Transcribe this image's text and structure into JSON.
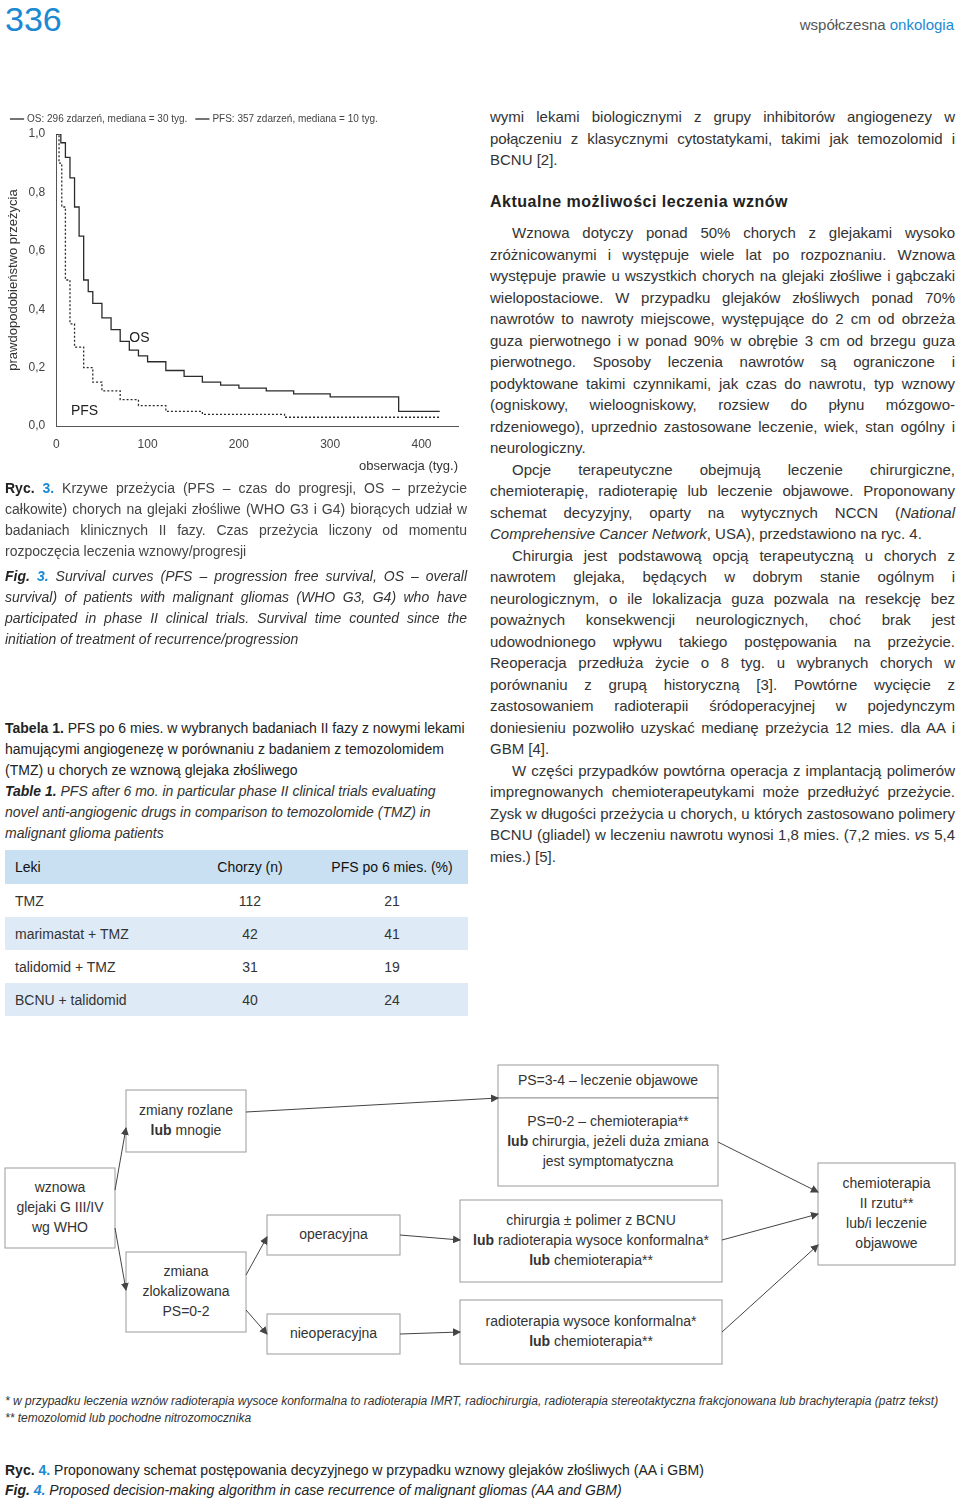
{
  "header": {
    "page_number": "336",
    "journal": [
      "współczesna",
      "onkologia"
    ]
  },
  "chart_data": {
    "type": "line",
    "x_label": "obserwacja (tyg.)",
    "y_label": "prawdopodobieństwo przeżycia",
    "xlim": [
      0,
      440
    ],
    "xticks": [
      0,
      100,
      200,
      300,
      400
    ],
    "ylim": [
      0,
      1
    ],
    "yticks": [
      {
        "value": 0,
        "label": "0,0"
      },
      {
        "value": 0.2,
        "label": "0,2"
      },
      {
        "value": 0.4,
        "label": "0,4"
      },
      {
        "value": 0.6,
        "label": "0,6"
      },
      {
        "value": 0.8,
        "label": "0,8"
      },
      {
        "value": 1,
        "label": "1,0"
      }
    ],
    "grid": false,
    "legend": "top-left",
    "series": [
      {
        "name": "OS: 296 zdarzeń, mediana = 30 tyg.",
        "color": "#2b2b2b",
        "line_style": "solid",
        "x": [
          0,
          5,
          10,
          15,
          20,
          25,
          30,
          35,
          40,
          50,
          60,
          70,
          80,
          90,
          100,
          120,
          140,
          160,
          180,
          200,
          230,
          260,
          300,
          375,
          420
        ],
        "values": [
          1.0,
          0.97,
          0.92,
          0.85,
          0.75,
          0.65,
          0.5,
          0.46,
          0.42,
          0.37,
          0.33,
          0.29,
          0.26,
          0.24,
          0.22,
          0.19,
          0.17,
          0.15,
          0.14,
          0.13,
          0.12,
          0.11,
          0.1,
          0.05,
          0.05
        ]
      },
      {
        "name": "PFS: 357 zdarzeń, mediana = 10 tyg.",
        "color": "#2b2b2b",
        "line_style": "dotted",
        "x": [
          0,
          3,
          6,
          10,
          15,
          20,
          30,
          40,
          50,
          70,
          90,
          120,
          160,
          250,
          420
        ],
        "values": [
          1.0,
          0.9,
          0.75,
          0.5,
          0.35,
          0.27,
          0.2,
          0.15,
          0.12,
          0.09,
          0.07,
          0.05,
          0.04,
          0.03,
          0.03
        ]
      }
    ],
    "annotations": [
      {
        "text": "OS",
        "x": 91,
        "y": 0.3
      },
      {
        "text": "PFS",
        "x": 31,
        "y": 0.05
      }
    ]
  },
  "figure3_caption": {
    "label": "Ryc.",
    "number": "3.",
    "text": "Krzywe przeżycia (PFS – czas do progresji, OS – przeżycie całkowite) chorych na glejaki złośliwe (WHO G3 i G4) biorących udział w badaniach klinicznych II fazy. Czas przeżycia liczony od momentu rozpoczęcia leczenia wznowy/progresji",
    "label_en": "Fig.",
    "number_en": "3.",
    "text_en": "Survival curves (PFS – progression free survival, OS – overall survival) of patients with malignant gliomas (WHO G3, G4) who have participated in phase II clinical trials. Survival time counted since the initiation of treatment of recurrence/progression"
  },
  "table1": {
    "label": "Tabela 1.",
    "caption": "PFS po 6 mies. w wybranych badaniach II fazy z nowymi lekami hamującymi angiogenezę w porównaniu z badaniem z temozolomidem (TMZ) u chorych ze wznową glejaka złośliwego",
    "label_en": "Table 1.",
    "caption_en": "PFS after 6 mo. in particular phase II clinical trials evaluating novel anti-angiogenic drugs in comparison to temozolomide (TMZ) in malignant glioma patients",
    "header": [
      "Leki",
      "Chorzy (n)",
      "PFS po 6 mies. (%)"
    ],
    "rows": [
      [
        "TMZ",
        112,
        21
      ],
      [
        "marimastat + TMZ",
        42,
        41
      ],
      [
        "talidomid + TMZ",
        31,
        19
      ],
      [
        "BCNU + talidomid",
        40,
        24
      ]
    ]
  },
  "body": [
    {
      "p": [
        "wymi lekami biologicznymi z grupy inhibitorów angiogenezy w połączeniu z klasycznymi cytostatykami, takimi jak temozolomid i BCNU [2]."
      ]
    },
    {
      "h": "Aktualne możliwości leczenia wznów"
    },
    {
      "p": [
        "Wznowa dotyczy ponad 50% chorych z glejakami wysoko zróżnicowanymi i występuje wiele lat po rozpoznaniu. Wznowa występuje prawie u wszystkich chorych na glejaki złośliwe i gąbczaki wielopostaciowe. W przypadku glejaków złośliwych ponad 70% nawrotów to nawroty miejscowe, występujące do 2 cm od obrzeża guza pierwotnego i w ponad 90% w obrębie 3 cm od brzegu guza pierwotnego. Sposoby leczenia nawrotów są ograniczone i podyktowane takimi czynnikami, jak czas do nawrotu, typ wznowy (ogniskowy, wieloogniskowy, rozsiew do płynu mózgowo-rdzeniowego), uprzednio zastosowane leczenie, wiek, stan ogólny i neurologiczny."
      ]
    },
    {
      "p": [
        "Opcje terapeutyczne obejmują leczenie chirurgiczne, chemioterapię, radioterapię lub leczenie objawowe. Proponowany schemat decyzyjny, oparty na wytycznych NCCN (",
        {
          "em": "National Comprehensive Cancer Network"
        },
        ", USA), przedstawiono na ryc. 4."
      ]
    },
    {
      "p": [
        "Chirurgia jest podstawową opcją terapeutyczną u chorych z nawrotem glejaka, będących w dobrym stanie ogólnym i neurologicznym, o ile lokalizacja guza pozwala na resekcję bez poważnych konsekwencji neurologicznych, choć brak jest udowodnionego wpływu takiego postępowania na przeżycie. Reoperacja przedłuża życie o 8 tyg. u wybranych chorych w porównaniu z grupą historyczną [3]. Powtórne wycięcie z zastosowaniem radioterapii śródoperacyjnej w pojedynczym doniesieniu pozwoliło uzyskać medianę przeżycia 12 mies. dla AA i GBM [4]."
      ]
    },
    {
      "p": [
        "W części przypadków powtórna operacja z implantacją polimerów impregnowanych chemioterapeutykami może przedłużyć przeżycie. Zysk w długości przeżycia u chorych, u których zastosowano polimery BCNU (gliadel) w leczeniu nawrotu wynosi 1,8 mies. (7,2 mies. ",
        {
          "em": "vs"
        },
        " 5,4 mies.) [5]."
      ]
    }
  ],
  "figure4": {
    "nodes": [
      {
        "lines": [
          "wznowa",
          "glejaki G III/IV",
          "wg WHO"
        ]
      },
      {
        "lines": [
          "zmiany rozlane",
          "lub mnogie"
        ]
      },
      {
        "lines": [
          "zmiana",
          "zlokalizowana",
          "PS=0-2"
        ]
      },
      {
        "lines": [
          "operacyjna"
        ]
      },
      {
        "lines": [
          "nieoperacyjna"
        ]
      },
      {
        "lines": [
          "PS=3-4 – leczenie objawowe"
        ]
      },
      {
        "lines": [
          "PS=0-2 – chemioterapia**",
          "lub chirurgia, jeżeli duża zmiana",
          "jest symptomatyczna"
        ]
      },
      {
        "lines": [
          "chirurgia ± polimer z BCNU",
          "lub radioterapia wysoce konformalna*",
          "lub chemioterapia**"
        ]
      },
      {
        "lines": [
          "radioterapia wysoce konformalna*",
          "lub chemioterapia**"
        ]
      },
      {
        "lines": [
          "chemioterapia",
          "II rzutu**",
          "lub/i leczenie",
          "objawowe"
        ]
      }
    ],
    "footnotes": [
      "* w przypadku leczenia wznów radioterapia wysoce konformalna to radioterapia IMRT, radiochirurgia, radioterapia stereotaktyczna frakcjonowana lub brachyterapia (patrz tekst)",
      "** temozolomid lub pochodne nitrozomocznika"
    ],
    "caption": {
      "label": "Ryc.",
      "number": "4.",
      "text": "Proponowany schemat postępowania decyzyjnego w przypadku wznowy glejaków złośliwych (AA i GBM)",
      "label_en": "Fig.",
      "number_en": "4.",
      "text_en": "Proposed decision-making algorithm in case recurrence of malignant gliomas (AA and GBM)"
    }
  }
}
